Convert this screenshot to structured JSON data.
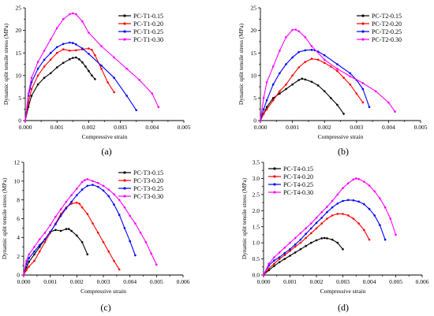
{
  "chart_data": [
    {
      "type": "line",
      "panel_label": "(a)",
      "xlabel": "Compressive strain",
      "ylabel": "Dynamic split tensile stress (MPa)",
      "xlim": [
        0,
        0.005
      ],
      "ylim": [
        0,
        25
      ],
      "xticks": [
        "0.000",
        "0.001",
        "0.002",
        "0.003",
        "0.004",
        "0.005"
      ],
      "yticks": [
        "0",
        "5",
        "10",
        "15",
        "20",
        "25"
      ],
      "legend_position": "top-right",
      "series": [
        {
          "name": "PC-T1-0.15",
          "color": "#000000",
          "x": [
            0,
            0.0001,
            0.0002,
            0.0004,
            0.0006,
            0.0008,
            0.001,
            0.0012,
            0.0014,
            0.0015,
            0.0016,
            0.0017,
            0.0018,
            0.0019,
            0.002,
            0.0021,
            0.0022
          ],
          "y": [
            0,
            3,
            5.5,
            8,
            9.5,
            10.5,
            11.8,
            12.8,
            13.6,
            13.9,
            14,
            13.6,
            12.9,
            12,
            11,
            10,
            9.2
          ]
        },
        {
          "name": "PC-T1-0.20",
          "color": "#ff0000",
          "x": [
            0,
            0.0001,
            0.0002,
            0.0004,
            0.0006,
            0.0008,
            0.001,
            0.0012,
            0.0014,
            0.0016,
            0.0018,
            0.002,
            0.0021,
            0.0022,
            0.0024,
            0.0026,
            0.0028
          ],
          "y": [
            0,
            4,
            7,
            10,
            12,
            13.5,
            15,
            15.8,
            15.5,
            15.6,
            15.8,
            16,
            15.7,
            14.5,
            11.5,
            8.5,
            6.3
          ]
        },
        {
          "name": "PC-T1-0.25",
          "color": "#0000ff",
          "x": [
            0,
            0.0001,
            0.0002,
            0.0004,
            0.0006,
            0.0008,
            0.001,
            0.0012,
            0.0014,
            0.0015,
            0.0016,
            0.0018,
            0.002,
            0.0024,
            0.0028,
            0.0032,
            0.0035
          ],
          "y": [
            0,
            5.5,
            8.5,
            11.5,
            13.5,
            15,
            16.3,
            17,
            17.3,
            17.2,
            16.9,
            16,
            14.8,
            12.2,
            9.5,
            5.5,
            2.3
          ]
        },
        {
          "name": "PC-T1-0.30",
          "color": "#ff00ff",
          "x": [
            0,
            0.0001,
            0.0002,
            0.0004,
            0.0006,
            0.0008,
            0.001,
            0.0012,
            0.0014,
            0.0015,
            0.0016,
            0.0018,
            0.002,
            0.0024,
            0.0028,
            0.0032,
            0.0036,
            0.004,
            0.0042
          ],
          "y": [
            0,
            6,
            9.5,
            13,
            15.5,
            18,
            20.5,
            22.5,
            23.6,
            23.8,
            23.6,
            22,
            19.5,
            16.5,
            14,
            11.5,
            9,
            6,
            3
          ]
        }
      ]
    },
    {
      "type": "line",
      "panel_label": "(b)",
      "xlabel": "Compressive strain",
      "ylabel": "Dynamic split tensile stress (MPa)",
      "xlim": [
        0,
        0.005
      ],
      "ylim": [
        0,
        25
      ],
      "xticks": [
        "0.000",
        "0.001",
        "0.002",
        "0.003",
        "0.004",
        "0.005"
      ],
      "yticks": [
        "0",
        "5",
        "10",
        "15",
        "20",
        "25"
      ],
      "legend_position": "top-right",
      "series": [
        {
          "name": "PC-T2-0.15",
          "color": "#000000",
          "x": [
            0,
            0.0001,
            0.0002,
            0.0004,
            0.0006,
            0.0008,
            0.001,
            0.0012,
            0.0013,
            0.0014,
            0.0016,
            0.0018,
            0.002,
            0.0022,
            0.0024,
            0.0026
          ],
          "y": [
            0,
            1.5,
            3,
            5,
            6,
            7,
            8,
            9,
            9.3,
            9.1,
            8.6,
            7.8,
            6.5,
            5,
            3.5,
            1.5
          ]
        },
        {
          "name": "PC-T2-0.20",
          "color": "#ff0000",
          "x": [
            0,
            0.0001,
            0.0002,
            0.0004,
            0.0006,
            0.0008,
            0.001,
            0.0012,
            0.0014,
            0.0016,
            0.0018,
            0.002,
            0.0022,
            0.0024,
            0.0026,
            0.0028,
            0.003,
            0.0032
          ],
          "y": [
            0,
            1.5,
            2.5,
            4.5,
            6.5,
            8,
            10,
            11.8,
            13,
            13.7,
            13.5,
            12.8,
            12,
            11,
            9.5,
            8,
            6,
            4
          ]
        },
        {
          "name": "PC-T2-0.25",
          "color": "#0000ff",
          "x": [
            0,
            0.0001,
            0.0002,
            0.0004,
            0.0006,
            0.0008,
            0.001,
            0.0012,
            0.0014,
            0.0016,
            0.0017,
            0.0018,
            0.002,
            0.0024,
            0.0028,
            0.003,
            0.0032,
            0.0034
          ],
          "y": [
            0,
            2.5,
            4.5,
            8,
            10.5,
            12.5,
            14,
            15.2,
            15.6,
            15.7,
            15.6,
            15.3,
            14.5,
            12.5,
            10.5,
            9,
            7,
            3
          ]
        },
        {
          "name": "PC-T2-0.30",
          "color": "#ff00ff",
          "x": [
            0,
            0.0001,
            0.0002,
            0.0004,
            0.0006,
            0.0008,
            0.001,
            0.0011,
            0.0012,
            0.0014,
            0.0016,
            0.002,
            0.0024,
            0.0028,
            0.0032,
            0.0036,
            0.004,
            0.0042
          ],
          "y": [
            0,
            5,
            8.5,
            12,
            15.5,
            18.5,
            20.1,
            20.2,
            19.8,
            18.5,
            16.5,
            13.5,
            11.5,
            9.8,
            8.3,
            6.5,
            4,
            2
          ]
        }
      ]
    },
    {
      "type": "line",
      "panel_label": "(c)",
      "xlabel": "Compressive strain",
      "ylabel": "Dynamic split tensile stress (MPa)",
      "xlim": [
        0,
        0.006
      ],
      "ylim": [
        0,
        12
      ],
      "xticks": [
        "0.000",
        "0.001",
        "0.002",
        "0.003",
        "0.004",
        "0.005",
        "0.006"
      ],
      "yticks": [
        "0",
        "2",
        "4",
        "6",
        "8",
        "10",
        "12"
      ],
      "legend_position": "top-right",
      "series": [
        {
          "name": "PC-T3-0.15",
          "color": "#000000",
          "x": [
            0,
            0.0001,
            0.0002,
            0.0004,
            0.0006,
            0.0008,
            0.001,
            0.0012,
            0.0014,
            0.0016,
            0.0017,
            0.0018,
            0.002,
            0.0022,
            0.0024
          ],
          "y": [
            0,
            0.8,
            1.4,
            2.2,
            3,
            3.8,
            4.6,
            4.8,
            4.7,
            4.9,
            4.9,
            4.7,
            4.2,
            3.5,
            2.2
          ]
        },
        {
          "name": "PC-T3-0.20",
          "color": "#ff0000",
          "x": [
            0,
            0.0001,
            0.0002,
            0.0004,
            0.0006,
            0.0008,
            0.001,
            0.0012,
            0.0014,
            0.0016,
            0.0018,
            0.002,
            0.0021,
            0.0022,
            0.0024,
            0.0026,
            0.0028,
            0.003,
            0.0032,
            0.0034,
            0.0036
          ],
          "y": [
            0,
            0.5,
            0.9,
            1.5,
            2.5,
            3.5,
            4.5,
            5.5,
            6.5,
            7.2,
            7.6,
            7.7,
            7.6,
            7.2,
            6.5,
            5.5,
            4.5,
            3.5,
            2.5,
            1.5,
            0.6
          ]
        },
        {
          "name": "PC-T3-0.25",
          "color": "#0000ff",
          "x": [
            0,
            0.0001,
            0.0002,
            0.0004,
            0.0006,
            0.0008,
            0.001,
            0.0012,
            0.0014,
            0.0016,
            0.0018,
            0.002,
            0.0022,
            0.0024,
            0.0026,
            0.0028,
            0.003,
            0.0032,
            0.0034,
            0.0036,
            0.0038,
            0.004,
            0.0042
          ],
          "y": [
            0,
            1.2,
            1.8,
            2.5,
            3.2,
            3.8,
            4.6,
            5.4,
            6.3,
            7.1,
            7.8,
            8.5,
            9.1,
            9.5,
            9.6,
            9.4,
            9,
            8.4,
            7.5,
            6.4,
            5,
            3.6,
            2.1
          ]
        },
        {
          "name": "PC-T3-0.30",
          "color": "#ff00ff",
          "x": [
            0,
            0.0001,
            0.0002,
            0.0004,
            0.0006,
            0.0008,
            0.001,
            0.0012,
            0.0014,
            0.0016,
            0.0018,
            0.002,
            0.0022,
            0.0023,
            0.0024,
            0.0026,
            0.0028,
            0.003,
            0.0032,
            0.0034,
            0.0036,
            0.0038,
            0.004,
            0.0042,
            0.0044,
            0.0046,
            0.0048,
            0.005
          ],
          "y": [
            0,
            1.5,
            2.2,
            3,
            3.8,
            4.5,
            5.3,
            6.2,
            7,
            7.8,
            8.5,
            9.2,
            9.9,
            10.1,
            10.2,
            10,
            9.8,
            9.5,
            9.1,
            8.6,
            8,
            7.2,
            6.3,
            5.5,
            4.5,
            3.5,
            2.3,
            1.1
          ]
        }
      ]
    },
    {
      "type": "line",
      "panel_label": "(d)",
      "xlabel": "Compressive strain",
      "ylabel": "Dynamic split tensile stress (MPa)",
      "xlim": [
        0,
        0.006
      ],
      "ylim": [
        0,
        3.5
      ],
      "xticks": [
        "0.000",
        "0.001",
        "0.002",
        "0.003",
        "0.004",
        "0.005",
        "0.006"
      ],
      "yticks": [
        "0.0",
        "0.5",
        "1.0",
        "1.5",
        "2.0",
        "2.5",
        "3.0",
        "3.5"
      ],
      "legend_position": "top-left",
      "series": [
        {
          "name": "PC-T4-0.15",
          "color": "#000000",
          "x": [
            0,
            0.0002,
            0.0004,
            0.0006,
            0.0008,
            0.001,
            0.0012,
            0.0014,
            0.0016,
            0.0018,
            0.002,
            0.0022,
            0.0023,
            0.0024,
            0.0026,
            0.0028,
            0.003
          ],
          "y": [
            0,
            0.15,
            0.28,
            0.4,
            0.5,
            0.6,
            0.7,
            0.8,
            0.9,
            1,
            1.08,
            1.14,
            1.15,
            1.14,
            1.1,
            1,
            0.8
          ]
        },
        {
          "name": "PC-T4-0.20",
          "color": "#ff0000",
          "x": [
            0,
            0.0002,
            0.0004,
            0.0006,
            0.0008,
            0.001,
            0.0012,
            0.0014,
            0.0016,
            0.0018,
            0.002,
            0.0022,
            0.0024,
            0.0026,
            0.0028,
            0.003,
            0.0032,
            0.0034,
            0.0036,
            0.0038,
            0.004
          ],
          "y": [
            0,
            0.2,
            0.35,
            0.5,
            0.62,
            0.75,
            0.88,
            1,
            1.15,
            1.3,
            1.45,
            1.6,
            1.75,
            1.85,
            1.9,
            1.9,
            1.85,
            1.75,
            1.6,
            1.4,
            1.1
          ]
        },
        {
          "name": "PC-T4-0.25",
          "color": "#0000ff",
          "x": [
            0,
            0.0002,
            0.0004,
            0.0006,
            0.0008,
            0.001,
            0.0012,
            0.0014,
            0.0016,
            0.0018,
            0.002,
            0.0022,
            0.0024,
            0.0026,
            0.0028,
            0.003,
            0.0032,
            0.0034,
            0.0036,
            0.0038,
            0.004,
            0.0042,
            0.0044,
            0.0046
          ],
          "y": [
            0,
            0.3,
            0.45,
            0.55,
            0.68,
            0.8,
            0.95,
            1.1,
            1.28,
            1.45,
            1.62,
            1.78,
            1.95,
            2.1,
            2.22,
            2.3,
            2.33,
            2.32,
            2.28,
            2.2,
            2.05,
            1.85,
            1.55,
            1.1
          ]
        },
        {
          "name": "PC-T4-0.30",
          "color": "#ff00ff",
          "x": [
            0,
            0.0002,
            0.0004,
            0.0006,
            0.0008,
            0.001,
            0.0012,
            0.0014,
            0.0016,
            0.0018,
            0.002,
            0.0022,
            0.0024,
            0.0026,
            0.0028,
            0.003,
            0.0032,
            0.0034,
            0.0035,
            0.0036,
            0.0038,
            0.004,
            0.0042,
            0.0044,
            0.0046,
            0.0048,
            0.005
          ],
          "y": [
            0,
            0.35,
            0.55,
            0.7,
            0.85,
            1,
            1.15,
            1.3,
            1.45,
            1.6,
            1.78,
            1.95,
            2.12,
            2.3,
            2.5,
            2.7,
            2.85,
            2.97,
            3,
            2.98,
            2.9,
            2.78,
            2.6,
            2.38,
            2.1,
            1.75,
            1.25
          ]
        }
      ]
    }
  ]
}
